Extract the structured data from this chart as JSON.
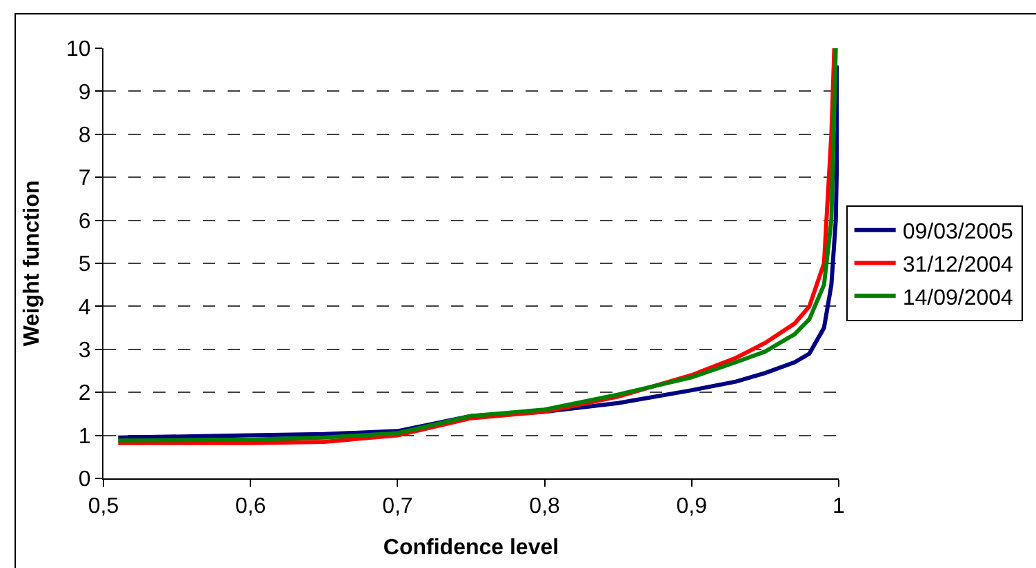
{
  "chart_data": {
    "type": "line",
    "xlabel": "Confidence level",
    "ylabel": "Weight function",
    "xlim": [
      0.5,
      1
    ],
    "xticks": [
      {
        "value": 0.5,
        "label": "0,5"
      },
      {
        "value": 0.6,
        "label": "0,6"
      },
      {
        "value": 0.7,
        "label": "0,7"
      },
      {
        "value": 0.8,
        "label": "0,8"
      },
      {
        "value": 0.9,
        "label": "0,9"
      },
      {
        "value": 1,
        "label": "1"
      }
    ],
    "ylim": [
      0,
      10
    ],
    "yticks": [
      0,
      1,
      2,
      3,
      4,
      5,
      6,
      7,
      8,
      9,
      10
    ],
    "grid": "y",
    "legend": "right",
    "line_style": "solid",
    "marker": "none",
    "series": [
      {
        "name": "09/03/2005",
        "color": "#000080",
        "x": [
          0.51,
          0.6,
          0.65,
          0.7,
          0.75,
          0.8,
          0.85,
          0.9,
          0.93,
          0.95,
          0.97,
          0.98,
          0.99,
          0.995,
          0.998,
          1.0
        ],
        "values": [
          0.95,
          1.0,
          1.03,
          1.1,
          1.45,
          1.55,
          1.75,
          2.05,
          2.25,
          2.45,
          2.7,
          2.9,
          3.5,
          4.5,
          6.0,
          9.6
        ]
      },
      {
        "name": "31/12/2004",
        "color": "#ff0000",
        "x": [
          0.51,
          0.6,
          0.65,
          0.7,
          0.75,
          0.8,
          0.85,
          0.9,
          0.93,
          0.95,
          0.97,
          0.98,
          0.99,
          0.995,
          0.997
        ],
        "values": [
          0.82,
          0.82,
          0.85,
          1.0,
          1.4,
          1.55,
          1.9,
          2.4,
          2.8,
          3.15,
          3.6,
          4.0,
          5.0,
          8.0,
          10
        ]
      },
      {
        "name": "14/09/2004",
        "color": "#008000",
        "x": [
          0.51,
          0.6,
          0.65,
          0.7,
          0.75,
          0.8,
          0.85,
          0.9,
          0.93,
          0.95,
          0.97,
          0.98,
          0.99,
          0.995,
          0.998
        ],
        "values": [
          0.88,
          0.9,
          0.95,
          1.05,
          1.45,
          1.6,
          1.95,
          2.35,
          2.7,
          2.95,
          3.35,
          3.7,
          4.5,
          6.0,
          10
        ]
      }
    ]
  }
}
